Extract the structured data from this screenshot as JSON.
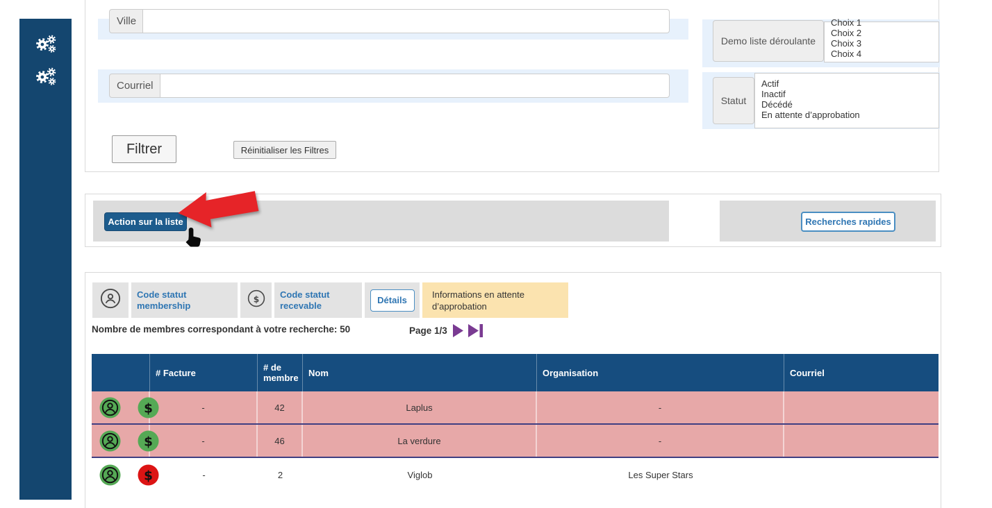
{
  "colors": {
    "navy": "#164d7f",
    "sidebar": "#14466f",
    "action-blue": "#1d5c8d",
    "link-blue": "#2f76b3",
    "pink": "#e7a8a8",
    "green": "#55a955",
    "red": "#dc1414",
    "yellow": "#fbe3af",
    "purple": "#7a3b92",
    "band": "#e7f1fc"
  },
  "sidebar": {
    "icons": [
      "cogs-icon",
      "cogs-icon"
    ]
  },
  "filters": {
    "ville": {
      "label": "Ville",
      "value": "",
      "placeholder": ""
    },
    "courriel": {
      "label": "Courriel",
      "value": "",
      "placeholder": ""
    },
    "demo_select": {
      "label": "Demo liste déroulante",
      "options": [
        "Choix 1",
        "Choix 2",
        "Choix 3",
        "Choix 4"
      ]
    },
    "statut_select": {
      "label": "Statut",
      "options": [
        "Actif",
        "Inactif",
        "Décédé",
        "En attente d’approbation"
      ]
    },
    "filter_button": "Filtrer",
    "reset_button": "Réinitialiser les Filtres"
  },
  "actions": {
    "list_action_button": "Action sur la liste",
    "quick_search_button": "Recherches rapides"
  },
  "legend": {
    "membership_label": "Code statut membership",
    "receivable_label": "Code statut recevable",
    "details_button": "Détails",
    "pending_label": "Informations en attente d’approbation"
  },
  "results": {
    "count_text": "Nombre de membres correspondant à votre recherche: 50",
    "page_label": "Page 1/3"
  },
  "table": {
    "headers": [
      "",
      "# Facture",
      "# de membre",
      "Nom",
      "Organisation",
      "Courriel"
    ],
    "rows": [
      {
        "membership_status": "green",
        "receivable_status": "green",
        "pending": true,
        "facture": "-",
        "membre": "42",
        "nom": "Laplus",
        "organisation": "-",
        "courriel": ""
      },
      {
        "membership_status": "green",
        "receivable_status": "green",
        "pending": true,
        "facture": "-",
        "membre": "46",
        "nom": "La verdure",
        "organisation": "-",
        "courriel": ""
      },
      {
        "membership_status": "green",
        "receivable_status": "red",
        "pending": false,
        "facture": "-",
        "membre": "2",
        "nom": "Viglob",
        "organisation": "Les Super Stars",
        "courriel": ""
      }
    ]
  }
}
